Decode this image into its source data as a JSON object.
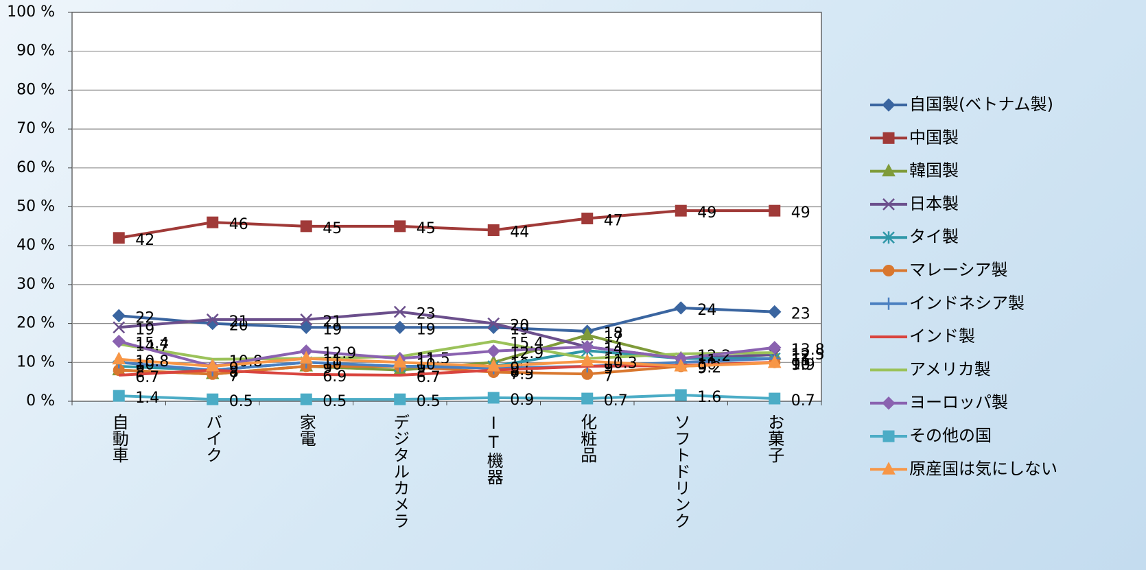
{
  "chart_data": {
    "type": "line",
    "categories": [
      "自動車",
      "バイク",
      "家電",
      "デジタルカメラ",
      "IT機器",
      "化粧品",
      "ソフトドリンク",
      "お菓子"
    ],
    "ylim": [
      0,
      100
    ],
    "yticks": [
      {
        "value": 0,
        "label": "0 %"
      },
      {
        "value": 10,
        "label": "10 %"
      },
      {
        "value": 20,
        "label": "20 %"
      },
      {
        "value": 30,
        "label": "30 %"
      },
      {
        "value": 40,
        "label": "40 %"
      },
      {
        "value": 50,
        "label": "50 %"
      },
      {
        "value": 60,
        "label": "60 %"
      },
      {
        "value": 70,
        "label": "70 %"
      },
      {
        "value": 80,
        "label": "80 %"
      },
      {
        "value": 90,
        "label": "90 %"
      },
      {
        "value": 100,
        "label": "100 %"
      }
    ],
    "grid": true,
    "legend": "right",
    "series": [
      {
        "name": "自国製(ベトナム製)",
        "color": "#3a65a0",
        "marker": "diamond",
        "values": [
          22,
          20,
          19,
          19,
          19,
          18,
          24,
          23
        ]
      },
      {
        "name": "中国製",
        "color": "#a03a38",
        "marker": "square",
        "values": [
          42,
          46,
          45,
          45,
          44,
          47,
          49,
          49
        ]
      },
      {
        "name": "韓国製",
        "color": "#7f9b3a",
        "marker": "triangle",
        "values": [
          8,
          7,
          9,
          8,
          10,
          17,
          11,
          12
        ]
      },
      {
        "name": "日本製",
        "color": "#6b4f8c",
        "marker": "x",
        "values": [
          19,
          21,
          21,
          23,
          20,
          14,
          11,
          12
        ]
      },
      {
        "name": "タイ製",
        "color": "#2f97a8",
        "marker": "asterisk",
        "values": [
          9,
          8,
          10,
          9,
          9,
          13,
          11,
          11
        ]
      },
      {
        "name": "マレーシア製",
        "color": "#d9772e",
        "marker": "circle",
        "values": [
          8,
          7,
          9,
          9,
          7.5,
          7,
          9,
          10
        ]
      },
      {
        "name": "インドネシア製",
        "color": "#4a7fc0",
        "marker": "plus",
        "values": [
          10,
          8,
          10,
          9,
          8.5,
          9,
          10,
          11
        ]
      },
      {
        "name": "インド製",
        "color": "#d9453f",
        "marker": "none",
        "values": [
          6.7,
          8,
          6.9,
          6.7,
          8,
          9,
          9.2,
          10
        ]
      },
      {
        "name": "アメリカ製",
        "color": "#9bc25a",
        "marker": "none",
        "values": [
          14.7,
          10.8,
          11,
          11.5,
          15.4,
          11,
          12.2,
          12.5
        ]
      },
      {
        "name": "ヨーロッパ製",
        "color": "#8a62b0",
        "marker": "diamond",
        "values": [
          15.4,
          9,
          12.9,
          11,
          12.9,
          14,
          11,
          13.8
        ]
      },
      {
        "name": "その他の国",
        "color": "#4bacc6",
        "marker": "square",
        "values": [
          1.4,
          0.5,
          0.5,
          0.5,
          0.9,
          0.7,
          1.6,
          0.7
        ]
      },
      {
        "name": "原産国は気にしない",
        "color": "#f79646",
        "marker": "triangle",
        "values": [
          10.8,
          9,
          11,
          10,
          9,
          10.3,
          9,
          9.9
        ]
      }
    ]
  }
}
